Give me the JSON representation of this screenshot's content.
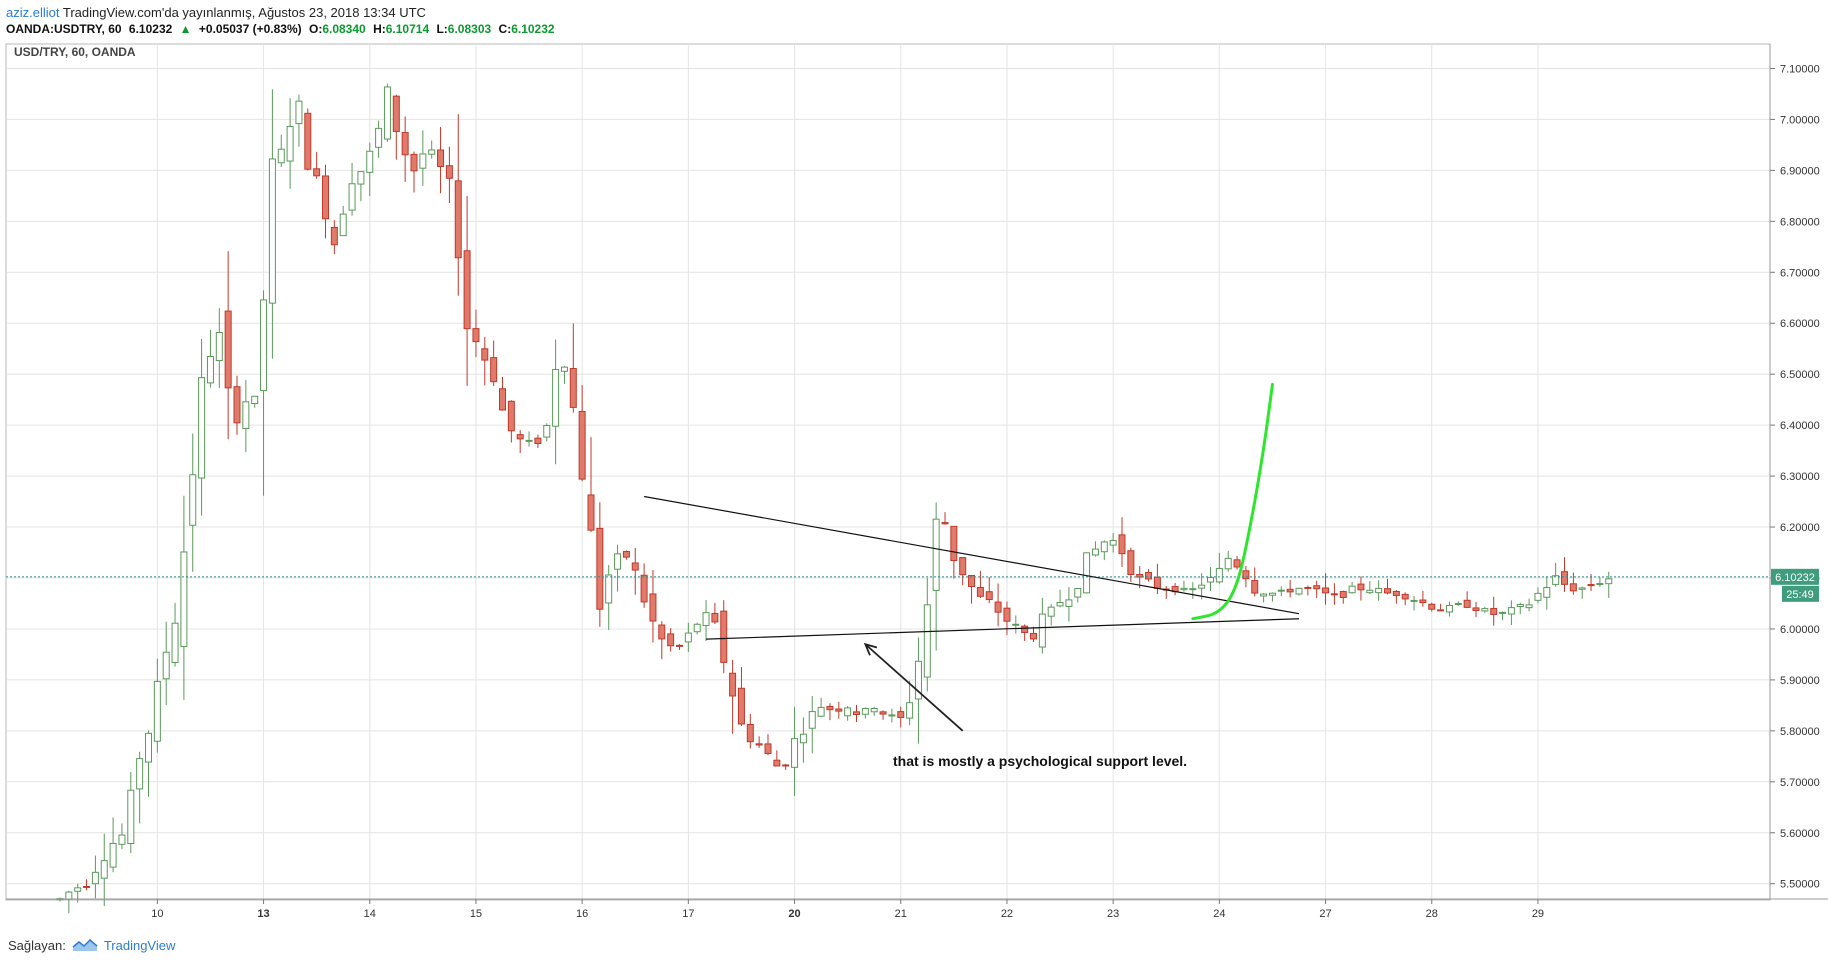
{
  "header": {
    "author": "aziz.elliot",
    "published": "TradingView.com'da yayınlanmış, Ağustos 23, 2018 13:34 UTC",
    "symbol": "OANDA:USDTRY, 60",
    "last": "6.10232",
    "change": "+0.05037 (+0.83%)",
    "o_label": "O:",
    "o": "6.08340",
    "h_label": "H:",
    "h": "6.10714",
    "l_label": "L:",
    "l": "6.08303",
    "c_label": "C:",
    "c": "6.10232"
  },
  "footer": {
    "provider_label": "Sağlayan:",
    "brand": "TradingView"
  },
  "chart_data": {
    "type": "candlestick",
    "title": "USD/TRY, 60, OANDA",
    "xlabel": "",
    "ylabel": "",
    "ylim": [
      5.47,
      7.15
    ],
    "y_ticks": [
      "5.50000",
      "5.60000",
      "5.70000",
      "5.80000",
      "5.90000",
      "6.00000",
      "6.10000",
      "6.20000",
      "6.30000",
      "6.40000",
      "6.50000",
      "6.60000",
      "6.70000",
      "6.80000",
      "6.90000",
      "7.00000",
      "7.10000"
    ],
    "x_tick_labels": [
      "10",
      "13",
      "14",
      "15",
      "16",
      "17",
      "20",
      "21",
      "22",
      "23",
      "24",
      "27",
      "28",
      "29"
    ],
    "x_tick_index": [
      11,
      23,
      35,
      47,
      59,
      71,
      83,
      95,
      107,
      119,
      131,
      143,
      155,
      167
    ],
    "bold_x_ticks": [
      "13",
      "20"
    ],
    "grid": true,
    "last_price_label": "6.10232",
    "countdown_label": "25:49",
    "colors": {
      "up": "#5a9a5a",
      "down": "#c0392b",
      "down_fill": "#e07a6a",
      "grid": "#e4e4e4",
      "arrow_line": "#222222",
      "projection": "#2ee62e",
      "price_line": "#2a8a8a"
    },
    "path": [
      5.47,
      5.49,
      5.5,
      5.55,
      5.58,
      5.6,
      5.75,
      5.82,
      5.95,
      6.05,
      6.3,
      6.5,
      6.6,
      6.4,
      6.45,
      6.45,
      6.85,
      6.95,
      7.05,
      6.92,
      6.85,
      6.75,
      6.9,
      6.9,
      6.95,
      7.05,
      6.95,
      6.9,
      6.95,
      6.9,
      6.85,
      6.6,
      6.55,
      6.5,
      6.4,
      6.37,
      6.36,
      6.38,
      6.58,
      6.45,
      6.28,
      6.05,
      6.12,
      6.15,
      6.1,
      6.02,
      5.97,
      5.96,
      5.99,
      6.03,
      6.0,
      5.9,
      5.8,
      5.78,
      5.75,
      5.72,
      5.78,
      5.82,
      5.85,
      5.84,
      5.85,
      5.83,
      5.85,
      5.83,
      5.82,
      5.88,
      6.03,
      6.25,
      6.15,
      6.1,
      6.06,
      6.05,
      6.02,
      6.0,
      5.98,
      6.02,
      6.05,
      6.07,
      6.12,
      6.16,
      6.18,
      6.15,
      6.1,
      6.09,
      6.08,
      6.08,
      6.07,
      6.09,
      6.1,
      6.14,
      6.12,
      6.08,
      6.07,
      6.07,
      6.08,
      6.08,
      6.07,
      6.06,
      6.07,
      6.08,
      6.08,
      6.07,
      6.07,
      6.06,
      6.05,
      6.04,
      6.04,
      6.05,
      6.04,
      6.03,
      6.03,
      6.04,
      6.05,
      6.08,
      6.1,
      6.08,
      6.08,
      6.09,
      6.1
    ],
    "triangle_upper": [
      [
        6.26,
        66
      ],
      [
        6.03,
        140
      ]
    ],
    "triangle_lower": [
      [
        5.98,
        73
      ],
      [
        6.02,
        140
      ]
    ],
    "projection_curve": [
      [
        6.02,
        128
      ],
      [
        6.03,
        131
      ],
      [
        6.08,
        133
      ],
      [
        6.2,
        134.5
      ],
      [
        6.35,
        136
      ],
      [
        6.48,
        137
      ]
    ],
    "annotation_arrow_from": [
      5.8,
      102
    ],
    "annotation_arrow_to": [
      5.97,
      91
    ],
    "annotation_text": "that is mostly a psychological support level."
  }
}
